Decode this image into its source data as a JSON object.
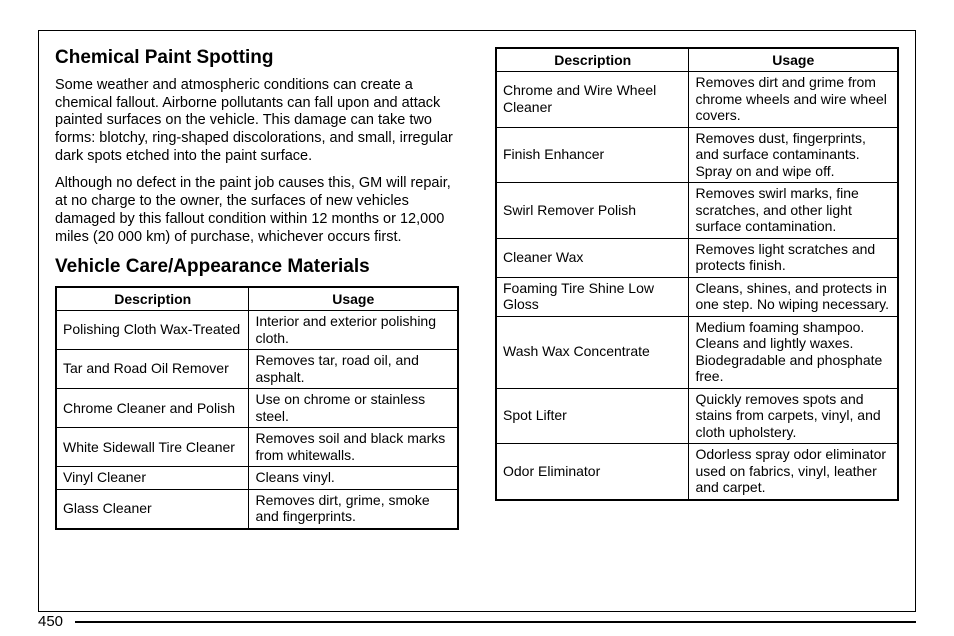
{
  "left": {
    "heading1": "Chemical Paint Spotting",
    "para1": "Some weather and atmospheric conditions can create a chemical fallout. Airborne pollutants can fall upon and attack painted surfaces on the vehicle. This damage can take two forms: blotchy, ring-shaped discolorations, and small, irregular dark spots etched into the paint surface.",
    "para2": "Although no defect in the paint job causes this, GM will repair, at no charge to the owner, the surfaces of new vehicles damaged by this fallout condition within 12 months or 12,000 miles (20 000 km) of purchase, whichever occurs first.",
    "heading2": "Vehicle Care/Appearance Materials"
  },
  "table_headers": {
    "desc": "Description",
    "usage": "Usage"
  },
  "table1": [
    {
      "d": "Polishing Cloth Wax-Treated",
      "u": "Interior and exterior polishing cloth."
    },
    {
      "d": "Tar and Road Oil Remover",
      "u": "Removes tar, road oil, and asphalt."
    },
    {
      "d": "Chrome Cleaner and Polish",
      "u": "Use on chrome or stainless steel."
    },
    {
      "d": "White Sidewall Tire Cleaner",
      "u": "Removes soil and black marks from whitewalls."
    },
    {
      "d": "Vinyl Cleaner",
      "u": "Cleans vinyl."
    },
    {
      "d": "Glass Cleaner",
      "u": "Removes dirt, grime, smoke and fingerprints."
    }
  ],
  "table2": [
    {
      "d": "Chrome and Wire Wheel Cleaner",
      "u": "Removes dirt and grime from chrome wheels and wire wheel covers."
    },
    {
      "d": "Finish Enhancer",
      "u": "Removes dust, fingerprints, and surface contaminants. Spray on and wipe off."
    },
    {
      "d": "Swirl Remover Polish",
      "u": "Removes swirl marks, fine scratches, and other light surface contamination."
    },
    {
      "d": "Cleaner Wax",
      "u": "Removes light scratches and protects finish."
    },
    {
      "d": "Foaming Tire Shine Low Gloss",
      "u": "Cleans, shines, and protects in one step. No wiping necessary."
    },
    {
      "d": "Wash Wax Concentrate",
      "u": "Medium foaming shampoo. Cleans and lightly waxes. Biodegradable and phosphate free."
    },
    {
      "d": "Spot Lifter",
      "u": "Quickly removes spots and stains from carpets, vinyl, and cloth upholstery."
    },
    {
      "d": "Odor Eliminator",
      "u": "Odorless spray odor eliminator used on fabrics, vinyl, leather and carpet."
    }
  ],
  "page_number": "450"
}
